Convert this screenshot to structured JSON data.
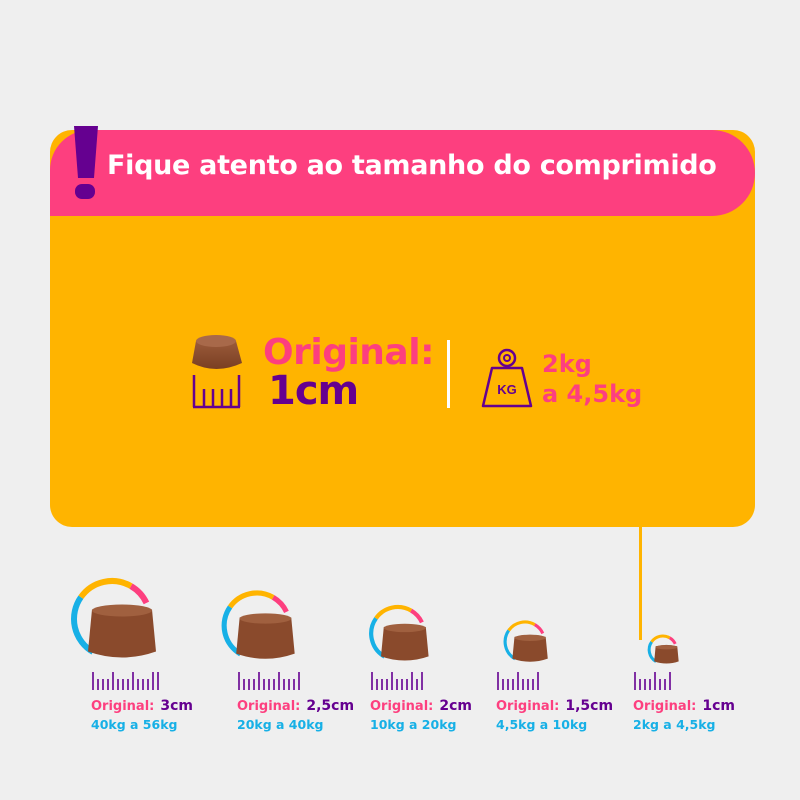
{
  "header": {
    "title": "Fique atento ao tamanho do comprimido",
    "icon": "exclamation-icon"
  },
  "featured": {
    "label": "Original:",
    "size": "1cm",
    "weight_line1": "2kg",
    "weight_line2": "a 4,5kg",
    "weight_icon_text": "KG"
  },
  "colors": {
    "pink": "#fd3f7f",
    "yellow": "#ffb400",
    "purple": "#650090",
    "blue": "#17b0e6",
    "brown": "#8a4a2c"
  },
  "sizes": [
    {
      "label": "Original:",
      "size": "3cm",
      "range": "40kg a 56kg"
    },
    {
      "label": "Original:",
      "size": "2,5cm",
      "range": "20kg a 40kg"
    },
    {
      "label": "Original:",
      "size": "2cm",
      "range": "10kg a 20kg"
    },
    {
      "label": "Original:",
      "size": "1,5cm",
      "range": "4,5kg a 10kg"
    },
    {
      "label": "Original:",
      "size": "1cm",
      "range": "2kg a 4,5kg"
    }
  ]
}
